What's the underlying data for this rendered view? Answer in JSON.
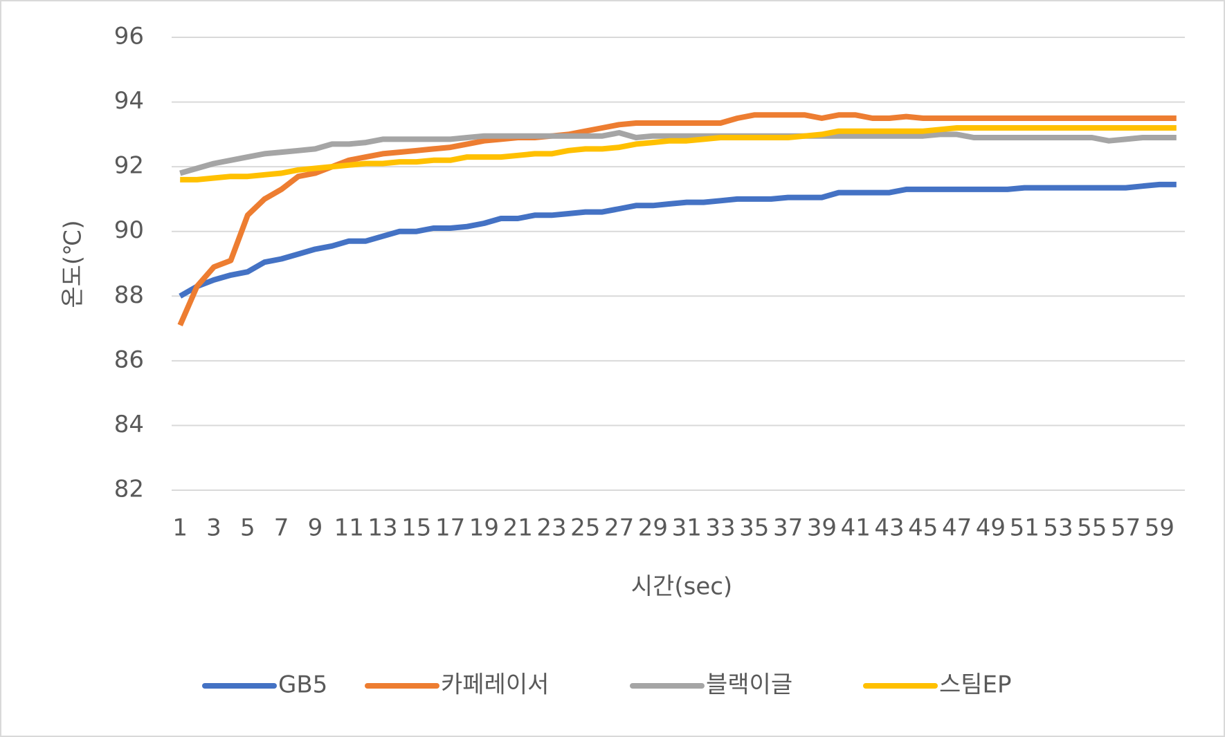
{
  "chart_data": {
    "type": "line",
    "x_label": "시간(sec)",
    "y_label": "온도(℃)",
    "categories": [
      1,
      null,
      3,
      null,
      5,
      null,
      7,
      null,
      9,
      null,
      11,
      null,
      13,
      null,
      15,
      null,
      17,
      null,
      19,
      null,
      21,
      null,
      23,
      null,
      25,
      null,
      27,
      null,
      29,
      null,
      31,
      null,
      33,
      null,
      35,
      null,
      37,
      null,
      39,
      null,
      41,
      null,
      43,
      null,
      45,
      null,
      47,
      null,
      49,
      null,
      51,
      null,
      53,
      null,
      55,
      null,
      57,
      null,
      59,
      null
    ],
    "series": [
      {
        "name": "GB5",
        "color": "#4472c4",
        "values": [
          88.0,
          88.3,
          88.5,
          88.65,
          88.75,
          89.05,
          89.15,
          89.3,
          89.45,
          89.55,
          89.7,
          89.7,
          89.85,
          90.0,
          90.0,
          90.1,
          90.1,
          90.15,
          90.25,
          90.4,
          90.4,
          90.5,
          90.5,
          90.55,
          90.6,
          90.6,
          90.7,
          90.8,
          90.8,
          90.85,
          90.9,
          90.9,
          90.95,
          91.0,
          91.0,
          91.0,
          91.05,
          91.05,
          91.05,
          91.2,
          91.2,
          91.2,
          91.2,
          91.3,
          91.3,
          91.3,
          91.3,
          91.3,
          91.3,
          91.3,
          91.35,
          91.35,
          91.35,
          91.35,
          91.35,
          91.35,
          91.35,
          91.4,
          91.45,
          91.45
        ]
      },
      {
        "name": "카페레이서",
        "color": "#ed7d31",
        "values": [
          87.1,
          88.3,
          88.9,
          89.1,
          90.5,
          91.0,
          91.3,
          91.7,
          91.8,
          92.0,
          92.2,
          92.3,
          92.4,
          92.45,
          92.5,
          92.55,
          92.6,
          92.7,
          92.8,
          92.85,
          92.9,
          92.9,
          92.95,
          93.0,
          93.1,
          93.2,
          93.3,
          93.35,
          93.35,
          93.35,
          93.35,
          93.35,
          93.35,
          93.5,
          93.6,
          93.6,
          93.6,
          93.6,
          93.5,
          93.6,
          93.6,
          93.5,
          93.5,
          93.55,
          93.5,
          93.5,
          93.5,
          93.5,
          93.5,
          93.5,
          93.5,
          93.5,
          93.5,
          93.5,
          93.5,
          93.5,
          93.5,
          93.5,
          93.5,
          93.5
        ]
      },
      {
        "name": "블랙이글",
        "color": "#a5a5a5",
        "values": [
          91.8,
          91.95,
          92.1,
          92.2,
          92.3,
          92.4,
          92.45,
          92.5,
          92.55,
          92.7,
          92.7,
          92.75,
          92.85,
          92.85,
          92.85,
          92.85,
          92.85,
          92.9,
          92.95,
          92.95,
          92.95,
          92.95,
          92.95,
          92.95,
          92.95,
          92.95,
          93.05,
          92.9,
          92.95,
          92.95,
          92.95,
          92.95,
          92.95,
          92.95,
          92.95,
          92.95,
          92.95,
          92.95,
          92.95,
          92.95,
          92.95,
          92.95,
          92.95,
          92.95,
          92.95,
          93.0,
          93.0,
          92.9,
          92.9,
          92.9,
          92.9,
          92.9,
          92.9,
          92.9,
          92.9,
          92.8,
          92.85,
          92.9,
          92.9,
          92.9
        ]
      },
      {
        "name": "스팀EP",
        "color": "#ffc000",
        "values": [
          91.6,
          91.6,
          91.65,
          91.7,
          91.7,
          91.75,
          91.8,
          91.9,
          91.95,
          92.0,
          92.05,
          92.1,
          92.1,
          92.15,
          92.15,
          92.2,
          92.2,
          92.3,
          92.3,
          92.3,
          92.35,
          92.4,
          92.4,
          92.5,
          92.55,
          92.55,
          92.6,
          92.7,
          92.75,
          92.8,
          92.8,
          92.85,
          92.9,
          92.9,
          92.9,
          92.9,
          92.9,
          92.95,
          93.0,
          93.1,
          93.1,
          93.1,
          93.1,
          93.1,
          93.1,
          93.15,
          93.2,
          93.2,
          93.2,
          93.2,
          93.2,
          93.2,
          93.2,
          93.2,
          93.2,
          93.2,
          93.2,
          93.2,
          93.2,
          93.2
        ]
      }
    ],
    "ylim": [
      82,
      96
    ],
    "yticks": [
      82,
      84,
      86,
      88,
      90,
      92,
      94,
      96
    ],
    "grid": true,
    "legend": "bottom"
  }
}
